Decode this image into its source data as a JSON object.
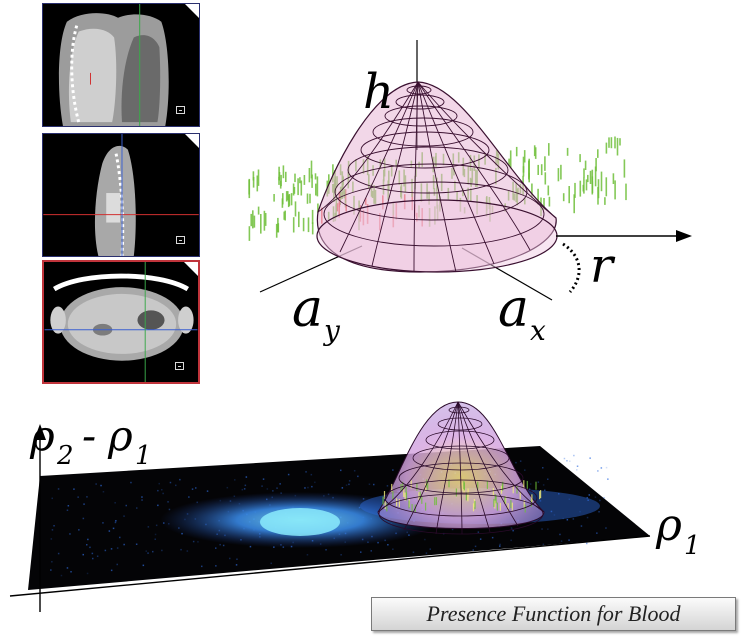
{
  "labels": {
    "h": "h",
    "r": "r",
    "a_x": "a",
    "a_x_sub": "x",
    "a_y": "a",
    "a_y_sub": "y",
    "rho": "ρ",
    "sub_1": "1",
    "sub_2": "2",
    "minus": "-"
  },
  "caption": "Presence Function for Blood",
  "colors": {
    "border_scan_views": "#2a2f6e",
    "border_axial_view": "#c0343b",
    "dome_fill": "#e8b7d6",
    "scatter_green": "#6fbf3a",
    "scatter_red": "#e8413d",
    "heatmap_blue": "#2f6de0"
  },
  "icons": [
    "corner-fold-icon",
    "window-button-icon"
  ]
}
